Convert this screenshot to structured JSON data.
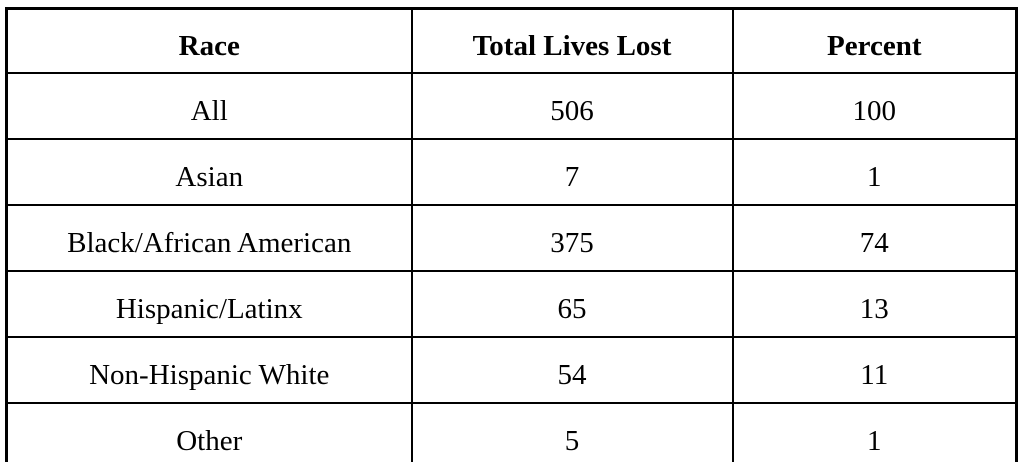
{
  "colors": {
    "background": "#ffffff",
    "table_border": "#000000",
    "text": "#000000"
  },
  "chart_data": {
    "type": "table",
    "title": "",
    "columns": [
      "Race",
      "Total Lives Lost",
      "Percent"
    ],
    "rows": [
      [
        "All",
        506,
        100
      ],
      [
        "Asian",
        7,
        1
      ],
      [
        "Black/African American",
        375,
        74
      ],
      [
        "Hispanic/Latinx",
        65,
        13
      ],
      [
        "Non-Hispanic White",
        54,
        11
      ],
      [
        "Other",
        5,
        1
      ]
    ]
  }
}
